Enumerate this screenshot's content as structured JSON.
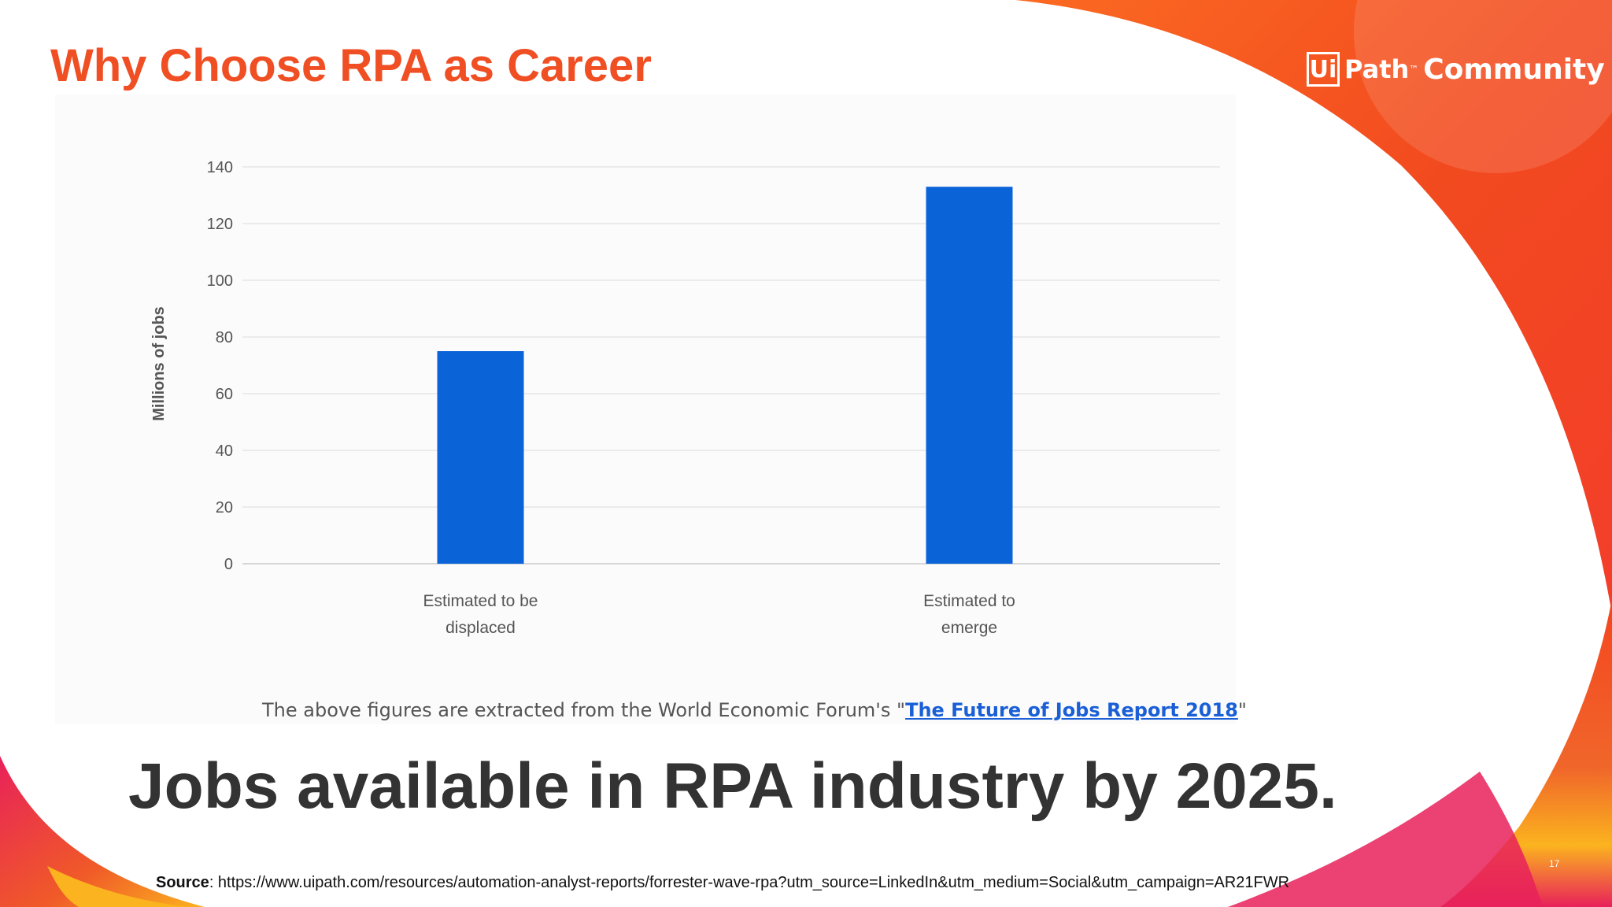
{
  "slide": {
    "title": "Why Choose RPA as Career",
    "logo_mark": "Ui",
    "logo_word": "Path",
    "logo_tm": "™",
    "logo_community": "Community",
    "note_prefix": "The above figures are extracted from the World Economic Forum's \"",
    "note_link": "The Future of Jobs Report 2018",
    "note_suffix": "\"",
    "headline": "Jobs available in RPA industry by 2025.",
    "source_label": "Source",
    "source_text": ": https://www.uipath.com/resources/automation-analyst-reports/forrester-wave-rpa?utm_source=LinkedIn&utm_medium=Social&utm_campaign=AR21FWR",
    "page_number": "17"
  },
  "colors": {
    "title": "#f04e23",
    "bar": "#0b63d8",
    "accent_orange": "#f5451f",
    "accent_pink": "#e8215a",
    "accent_yellow": "#fbb31f"
  },
  "chart_data": {
    "type": "bar",
    "categories": [
      [
        "Estimated to be",
        "displaced"
      ],
      [
        "Estimated to",
        "emerge"
      ]
    ],
    "values": [
      75,
      133
    ],
    "title": "",
    "xlabel": "",
    "ylabel": "Millions of jobs",
    "ylim": [
      0,
      140
    ],
    "yticks": [
      0,
      20,
      40,
      60,
      80,
      100,
      120,
      140
    ],
    "grid": true,
    "legend": "none"
  }
}
